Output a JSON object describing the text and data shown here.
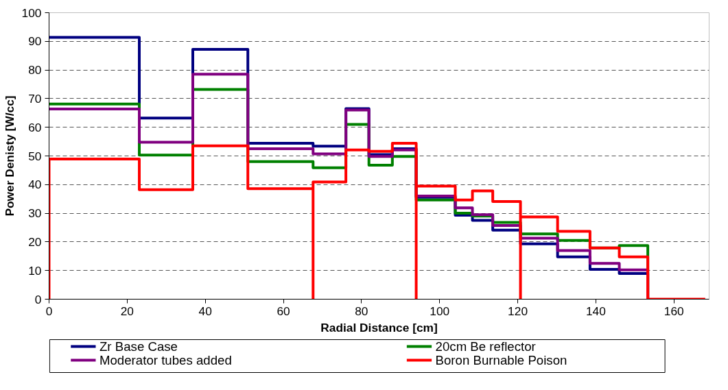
{
  "chart_data": {
    "type": "step",
    "xlabel": "Radial Distance [cm]",
    "ylabel": "Power Denisty [W/cc]",
    "xlim": [
      0,
      169
    ],
    "xticks": [
      0,
      20,
      40,
      60,
      80,
      100,
      120,
      140,
      160
    ],
    "ylim": [
      0,
      100
    ],
    "yticks": [
      0,
      10,
      20,
      30,
      40,
      50,
      60,
      70,
      80,
      90,
      100
    ],
    "grid": "y",
    "legend": "bottom",
    "line_style": "solid",
    "series": [
      {
        "name": "Zr Base Case",
        "color": "#000080",
        "x": [
          0,
          23.1,
          36.8,
          50.9,
          67.6,
          76.0,
          81.9,
          87.9,
          94.0,
          104.0,
          108.4,
          113.6,
          120.7,
          130.2,
          138.5,
          146.0,
          153.3
        ],
        "values": [
          91.4,
          63.2,
          87.2,
          54.4,
          53.4,
          66.5,
          50.5,
          52.5,
          35.6,
          29.3,
          27.5,
          24.1,
          19.3,
          14.8,
          10.4,
          9.0,
          0
        ]
      },
      {
        "name": "20cm Be reflector",
        "color": "#008000",
        "x": [
          0,
          23.1,
          36.8,
          50.9,
          67.6,
          76.0,
          81.9,
          87.9,
          94.0,
          104.0,
          108.4,
          113.6,
          120.7,
          130.2,
          138.5,
          146.0,
          153.3
        ],
        "values": [
          68.1,
          50.3,
          73.2,
          48.0,
          45.9,
          61.0,
          46.8,
          49.8,
          34.6,
          30.0,
          29.0,
          26.8,
          22.8,
          20.5,
          17.9,
          18.7,
          0
        ]
      },
      {
        "name": "Moderator tubes added",
        "color": "#800080",
        "x": [
          0,
          23.1,
          36.8,
          50.9,
          67.6,
          76.0,
          81.9,
          87.9,
          94.0,
          104.0,
          108.4,
          113.6,
          120.7,
          130.2,
          138.5,
          146.0,
          153.3
        ],
        "values": [
          66.4,
          54.8,
          78.5,
          52.5,
          50.7,
          66.0,
          49.8,
          52.1,
          36.0,
          31.9,
          29.5,
          25.7,
          21.3,
          17.0,
          12.5,
          10.2,
          0
        ]
      },
      {
        "name": "Boron Burnable Poison",
        "color": "#ff0000",
        "x": [
          0,
          0,
          23.1,
          36.8,
          50.9,
          67.6,
          67.6,
          76.0,
          81.9,
          87.9,
          94.0,
          94.0,
          104.0,
          108.4,
          113.6,
          120.7,
          120.7,
          130.2,
          138.5,
          146.0,
          153.3,
          168
        ],
        "values": [
          0,
          48.9,
          38.2,
          53.5,
          38.6,
          0,
          40.9,
          52.1,
          51.6,
          54.4,
          0,
          39.5,
          34.6,
          37.8,
          34.1,
          0,
          28.7,
          23.7,
          17.9,
          14.8,
          0,
          0
        ]
      }
    ]
  }
}
